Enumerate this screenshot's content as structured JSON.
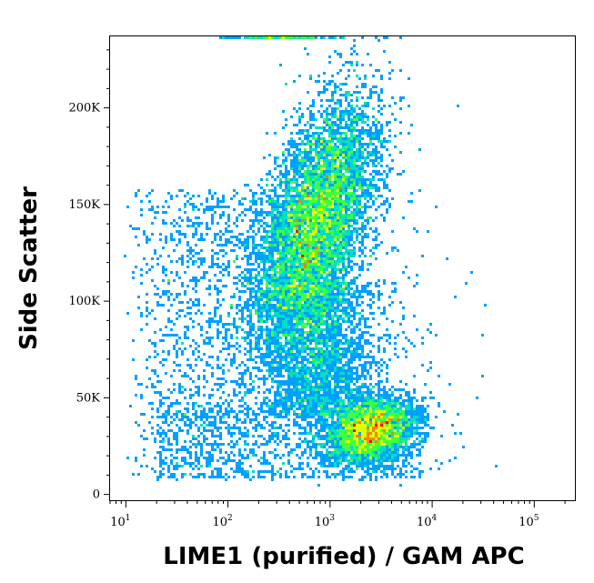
{
  "chart_data": {
    "type": "scatter",
    "style": "density-pseudocolor",
    "xlabel": "LIME1 (purified) / GAM APC",
    "ylabel": "Side Scatter",
    "x_scale": "log",
    "xlim": [
      7,
      250000
    ],
    "ylim": [
      -3000,
      237000
    ],
    "x_ticks": [
      {
        "base": "10",
        "exp": "1",
        "value": 10
      },
      {
        "base": "10",
        "exp": "2",
        "value": 100
      },
      {
        "base": "10",
        "exp": "3",
        "value": 1000
      },
      {
        "base": "10",
        "exp": "4",
        "value": 10000
      },
      {
        "base": "10",
        "exp": "5",
        "value": 100000
      }
    ],
    "y_ticks": [
      {
        "label": "0",
        "value": 0
      },
      {
        "label": "50K",
        "value": 50000
      },
      {
        "label": "100K",
        "value": 100000
      },
      {
        "label": "150K",
        "value": 150000
      },
      {
        "label": "200K",
        "value": 200000
      }
    ],
    "populations": [
      {
        "name": "main",
        "center_x": 700,
        "center_y": 140000,
        "n": 9000
      },
      {
        "name": "lower",
        "center_x": 2500,
        "center_y": 33000,
        "n": 3500
      }
    ],
    "colormap": [
      "#0000ff",
      "#00a0ff",
      "#00e0c0",
      "#40ff40",
      "#e0ff00",
      "#ff8000",
      "#ff0000"
    ]
  }
}
